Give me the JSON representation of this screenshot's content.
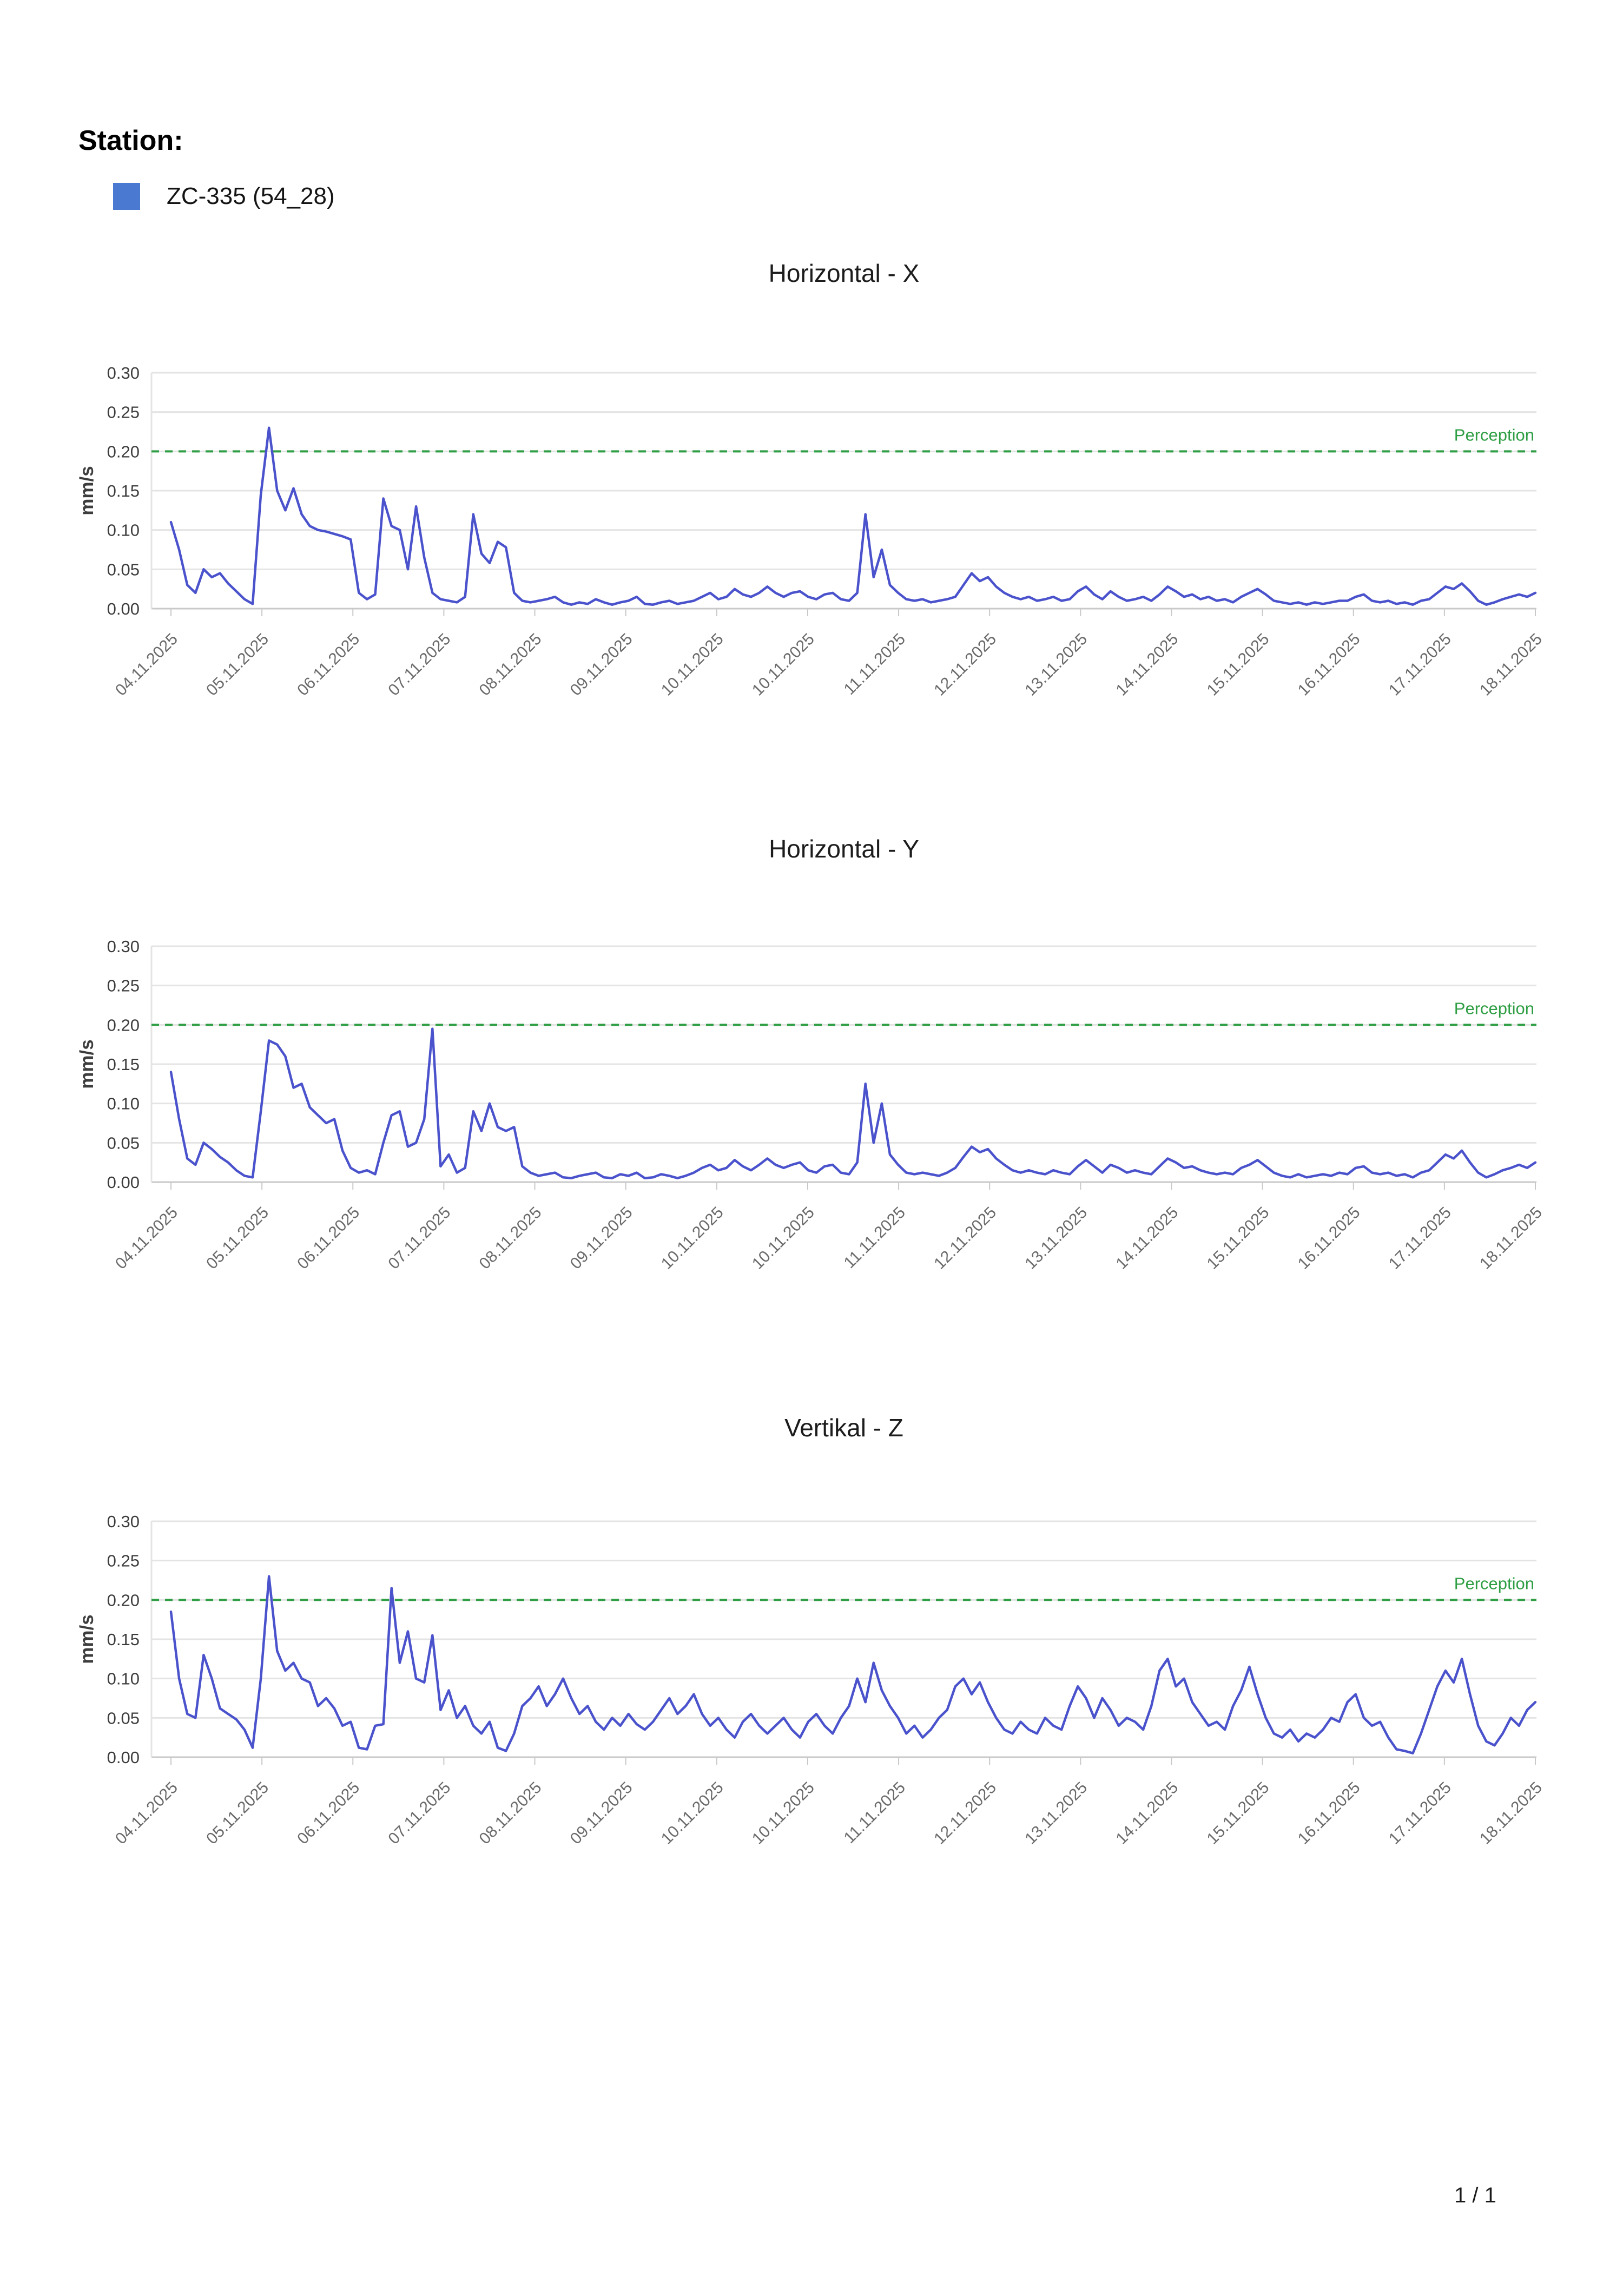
{
  "header": {
    "station_label": "Station:",
    "legend": {
      "series_name": "ZC-335 (54_28)",
      "color": "#4a79d2"
    }
  },
  "footer": {
    "page_indicator": "1 / 1"
  },
  "colors": {
    "legend_blue": "#4a79d2",
    "line_blue": "#4a52cc",
    "perception_green": "#2f9e44",
    "grid_line": "#e4e4e4",
    "axis_line": "#c9c9c9",
    "y_tick_text": "#3d3d3d",
    "x_tick_text": "#6a6a6a",
    "title_text": "#1c1c1c"
  },
  "chart_data": [
    {
      "type": "line",
      "title": "Horizontal - X",
      "series_name": "ZC-335 (54_28)",
      "ylabel": "mm/s",
      "ylim": [
        0,
        0.3
      ],
      "grid": true,
      "line_color": "#4a52cc",
      "perception": {
        "label": "Perception",
        "value": 0.2
      },
      "y_ticks": [
        {
          "label": "0.00",
          "value": 0.0
        },
        {
          "label": "0.05",
          "value": 0.05
        },
        {
          "label": "0.10",
          "value": 0.1
        },
        {
          "label": "0.15",
          "value": 0.15
        },
        {
          "label": "0.20",
          "value": 0.2
        },
        {
          "label": "0.25",
          "value": 0.25
        },
        {
          "label": "0.30",
          "value": 0.3
        }
      ],
      "x_tick_labels": [
        "04.11.2025",
        "05.11.2025",
        "06.11.2025",
        "07.11.2025",
        "08.11.2025",
        "09.11.2025",
        "10.11.2025",
        "10.11.2025",
        "11.11.2025",
        "12.11.2025",
        "13.11.2025",
        "14.11.2025",
        "15.11.2025",
        "16.11.2025",
        "17.11.2025",
        "18.11.2025"
      ],
      "values": [
        0.11,
        0.075,
        0.03,
        0.02,
        0.05,
        0.04,
        0.045,
        0.032,
        0.022,
        0.012,
        0.006,
        0.145,
        0.23,
        0.15,
        0.125,
        0.153,
        0.12,
        0.105,
        0.1,
        0.098,
        0.095,
        0.092,
        0.088,
        0.02,
        0.012,
        0.018,
        0.14,
        0.105,
        0.1,
        0.05,
        0.13,
        0.065,
        0.02,
        0.012,
        0.01,
        0.008,
        0.015,
        0.12,
        0.07,
        0.058,
        0.085,
        0.078,
        0.02,
        0.01,
        0.008,
        0.01,
        0.012,
        0.015,
        0.008,
        0.005,
        0.008,
        0.006,
        0.012,
        0.008,
        0.005,
        0.008,
        0.01,
        0.015,
        0.006,
        0.005,
        0.008,
        0.01,
        0.006,
        0.008,
        0.01,
        0.015,
        0.02,
        0.012,
        0.015,
        0.025,
        0.018,
        0.015,
        0.02,
        0.028,
        0.02,
        0.015,
        0.02,
        0.022,
        0.015,
        0.012,
        0.018,
        0.02,
        0.012,
        0.01,
        0.02,
        0.12,
        0.04,
        0.075,
        0.03,
        0.02,
        0.012,
        0.01,
        0.012,
        0.008,
        0.01,
        0.012,
        0.015,
        0.03,
        0.045,
        0.035,
        0.04,
        0.028,
        0.02,
        0.015,
        0.012,
        0.015,
        0.01,
        0.012,
        0.015,
        0.01,
        0.012,
        0.022,
        0.028,
        0.018,
        0.012,
        0.022,
        0.015,
        0.01,
        0.012,
        0.015,
        0.01,
        0.018,
        0.028,
        0.022,
        0.015,
        0.018,
        0.012,
        0.015,
        0.01,
        0.012,
        0.008,
        0.015,
        0.02,
        0.025,
        0.018,
        0.01,
        0.008,
        0.006,
        0.008,
        0.005,
        0.008,
        0.006,
        0.008,
        0.01,
        0.01,
        0.015,
        0.018,
        0.01,
        0.008,
        0.01,
        0.006,
        0.008,
        0.005,
        0.01,
        0.012,
        0.02,
        0.028,
        0.025,
        0.032,
        0.022,
        0.01,
        0.005,
        0.008,
        0.012,
        0.015,
        0.018,
        0.015,
        0.02
      ]
    },
    {
      "type": "line",
      "title": "Horizontal - Y",
      "series_name": "ZC-335 (54_28)",
      "ylabel": "mm/s",
      "ylim": [
        0,
        0.3
      ],
      "grid": true,
      "line_color": "#4a52cc",
      "perception": {
        "label": "Perception",
        "value": 0.2
      },
      "y_ticks": [
        {
          "label": "0.00",
          "value": 0.0
        },
        {
          "label": "0.05",
          "value": 0.05
        },
        {
          "label": "0.10",
          "value": 0.1
        },
        {
          "label": "0.15",
          "value": 0.15
        },
        {
          "label": "0.20",
          "value": 0.2
        },
        {
          "label": "0.25",
          "value": 0.25
        },
        {
          "label": "0.30",
          "value": 0.3
        }
      ],
      "x_tick_labels": [
        "04.11.2025",
        "05.11.2025",
        "06.11.2025",
        "07.11.2025",
        "08.11.2025",
        "09.11.2025",
        "10.11.2025",
        "10.11.2025",
        "11.11.2025",
        "12.11.2025",
        "13.11.2025",
        "14.11.2025",
        "15.11.2025",
        "16.11.2025",
        "17.11.2025",
        "18.11.2025"
      ],
      "values": [
        0.14,
        0.08,
        0.03,
        0.022,
        0.05,
        0.042,
        0.032,
        0.025,
        0.015,
        0.008,
        0.006,
        0.09,
        0.18,
        0.175,
        0.16,
        0.12,
        0.125,
        0.095,
        0.085,
        0.075,
        0.08,
        0.04,
        0.018,
        0.012,
        0.015,
        0.01,
        0.05,
        0.085,
        0.09,
        0.045,
        0.05,
        0.08,
        0.195,
        0.02,
        0.035,
        0.012,
        0.018,
        0.09,
        0.065,
        0.1,
        0.07,
        0.065,
        0.07,
        0.02,
        0.012,
        0.008,
        0.01,
        0.012,
        0.006,
        0.005,
        0.008,
        0.01,
        0.012,
        0.006,
        0.005,
        0.01,
        0.008,
        0.012,
        0.005,
        0.006,
        0.01,
        0.008,
        0.005,
        0.008,
        0.012,
        0.018,
        0.022,
        0.015,
        0.018,
        0.028,
        0.02,
        0.015,
        0.022,
        0.03,
        0.022,
        0.018,
        0.022,
        0.025,
        0.015,
        0.012,
        0.02,
        0.022,
        0.012,
        0.01,
        0.025,
        0.125,
        0.05,
        0.1,
        0.035,
        0.022,
        0.012,
        0.01,
        0.012,
        0.01,
        0.008,
        0.012,
        0.018,
        0.032,
        0.045,
        0.038,
        0.042,
        0.03,
        0.022,
        0.015,
        0.012,
        0.015,
        0.012,
        0.01,
        0.015,
        0.012,
        0.01,
        0.02,
        0.028,
        0.02,
        0.012,
        0.022,
        0.018,
        0.012,
        0.015,
        0.012,
        0.01,
        0.02,
        0.03,
        0.025,
        0.018,
        0.02,
        0.015,
        0.012,
        0.01,
        0.012,
        0.01,
        0.018,
        0.022,
        0.028,
        0.02,
        0.012,
        0.008,
        0.006,
        0.01,
        0.006,
        0.008,
        0.01,
        0.008,
        0.012,
        0.01,
        0.018,
        0.02,
        0.012,
        0.01,
        0.012,
        0.008,
        0.01,
        0.006,
        0.012,
        0.015,
        0.025,
        0.035,
        0.03,
        0.04,
        0.025,
        0.012,
        0.006,
        0.01,
        0.015,
        0.018,
        0.022,
        0.018,
        0.025
      ]
    },
    {
      "type": "line",
      "title": "Vertikal - Z",
      "series_name": "ZC-335 (54_28)",
      "ylabel": "mm/s",
      "ylim": [
        0,
        0.3
      ],
      "grid": true,
      "line_color": "#4a52cc",
      "perception": {
        "label": "Perception",
        "value": 0.2
      },
      "y_ticks": [
        {
          "label": "0.00",
          "value": 0.0
        },
        {
          "label": "0.05",
          "value": 0.05
        },
        {
          "label": "0.10",
          "value": 0.1
        },
        {
          "label": "0.15",
          "value": 0.15
        },
        {
          "label": "0.20",
          "value": 0.2
        },
        {
          "label": "0.25",
          "value": 0.25
        },
        {
          "label": "0.30",
          "value": 0.3
        }
      ],
      "x_tick_labels": [
        "04.11.2025",
        "05.11.2025",
        "06.11.2025",
        "07.11.2025",
        "08.11.2025",
        "09.11.2025",
        "10.11.2025",
        "10.11.2025",
        "11.11.2025",
        "12.11.2025",
        "13.11.2025",
        "14.11.2025",
        "15.11.2025",
        "16.11.2025",
        "17.11.2025",
        "18.11.2025"
      ],
      "values": [
        0.185,
        0.1,
        0.055,
        0.05,
        0.13,
        0.1,
        0.062,
        0.055,
        0.048,
        0.035,
        0.012,
        0.1,
        0.23,
        0.135,
        0.11,
        0.12,
        0.1,
        0.095,
        0.065,
        0.075,
        0.062,
        0.04,
        0.045,
        0.012,
        0.01,
        0.04,
        0.042,
        0.215,
        0.12,
        0.16,
        0.1,
        0.095,
        0.155,
        0.06,
        0.085,
        0.05,
        0.065,
        0.04,
        0.03,
        0.045,
        0.012,
        0.008,
        0.03,
        0.065,
        0.075,
        0.09,
        0.065,
        0.08,
        0.1,
        0.075,
        0.055,
        0.065,
        0.045,
        0.035,
        0.05,
        0.04,
        0.055,
        0.042,
        0.035,
        0.045,
        0.06,
        0.075,
        0.055,
        0.065,
        0.08,
        0.055,
        0.04,
        0.05,
        0.035,
        0.025,
        0.045,
        0.055,
        0.04,
        0.03,
        0.04,
        0.05,
        0.035,
        0.025,
        0.045,
        0.055,
        0.04,
        0.03,
        0.05,
        0.065,
        0.1,
        0.07,
        0.12,
        0.085,
        0.065,
        0.05,
        0.03,
        0.04,
        0.025,
        0.035,
        0.05,
        0.06,
        0.09,
        0.1,
        0.08,
        0.095,
        0.07,
        0.05,
        0.035,
        0.03,
        0.045,
        0.035,
        0.03,
        0.05,
        0.04,
        0.035,
        0.065,
        0.09,
        0.075,
        0.05,
        0.075,
        0.06,
        0.04,
        0.05,
        0.045,
        0.035,
        0.065,
        0.11,
        0.125,
        0.09,
        0.1,
        0.07,
        0.055,
        0.04,
        0.045,
        0.035,
        0.065,
        0.085,
        0.115,
        0.08,
        0.05,
        0.03,
        0.025,
        0.035,
        0.02,
        0.03,
        0.025,
        0.035,
        0.05,
        0.045,
        0.07,
        0.08,
        0.05,
        0.04,
        0.045,
        0.025,
        0.01,
        0.008,
        0.005,
        0.03,
        0.06,
        0.09,
        0.11,
        0.095,
        0.125,
        0.08,
        0.04,
        0.02,
        0.015,
        0.03,
        0.05,
        0.04,
        0.06,
        0.07
      ]
    }
  ]
}
